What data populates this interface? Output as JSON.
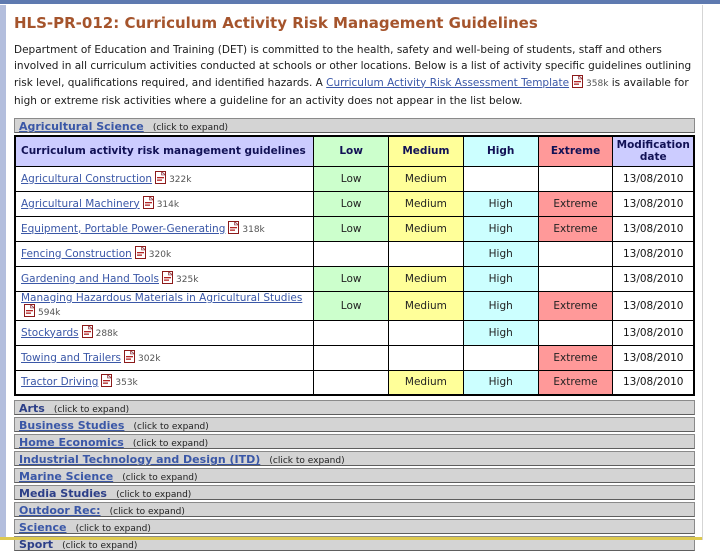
{
  "page": {
    "title": "HLS-PR-012: Curriculum Activity Risk Management Guidelines"
  },
  "intro": {
    "text_before_link": "Department of Education and Training (DET) is committed to the health, safety and well-being of students, staff and others involved in all curriculum activities conducted at schools or other locations. Below is a list of activity specific guidelines outlining risk level, qualifications required, and identified hazards. A ",
    "link_text": "Curriculum Activity Risk Assessment Template",
    "link_size": "358k",
    "text_after_link": " is available for high or extreme risk activities where a guideline for an activity does not appear in the list below."
  },
  "expanded_section": {
    "label": "Agricultural Science",
    "hint": "(click to expand)"
  },
  "table": {
    "headers": [
      "Curriculum activity risk management guidelines",
      "Low",
      "Medium",
      "High",
      "Extreme",
      "Modification date"
    ],
    "rows": [
      {
        "activity": "Agricultural Construction",
        "size": "322k",
        "low": "Low",
        "medium": "Medium",
        "high": "",
        "extreme": "",
        "date": "13/08/2010"
      },
      {
        "activity": "Agricultural Machinery",
        "size": "314k",
        "low": "Low",
        "medium": "Medium",
        "high": "High",
        "extreme": "Extreme",
        "date": "13/08/2010"
      },
      {
        "activity": "Equipment, Portable Power-Generating",
        "size": "318k",
        "low": "Low",
        "medium": "Medium",
        "high": "High",
        "extreme": "Extreme",
        "date": "13/08/2010"
      },
      {
        "activity": "Fencing Construction",
        "size": "320k",
        "low": "",
        "medium": "",
        "high": "High",
        "extreme": "",
        "date": "13/08/2010"
      },
      {
        "activity": "Gardening and Hand Tools",
        "size": "325k",
        "low": "Low",
        "medium": "Medium",
        "high": "High",
        "extreme": "",
        "date": "13/08/2010"
      },
      {
        "activity": "Managing Hazardous Materials in Agricultural Studies",
        "size": "594k",
        "low": "Low",
        "medium": "Medium",
        "high": "High",
        "extreme": "Extreme",
        "date": "13/08/2010"
      },
      {
        "activity": "Stockyards",
        "size": "288k",
        "low": "",
        "medium": "",
        "high": "High",
        "extreme": "",
        "date": "13/08/2010"
      },
      {
        "activity": "Towing and Trailers",
        "size": "302k",
        "low": "",
        "medium": "",
        "high": "",
        "extreme": "Extreme",
        "date": "13/08/2010"
      },
      {
        "activity": "Tractor Driving",
        "size": "353k",
        "low": "",
        "medium": "Medium",
        "high": "High",
        "extreme": "Extreme",
        "date": "13/08/2010"
      }
    ]
  },
  "collapsed_sections": [
    {
      "label": "Arts",
      "hint": "(click to expand)",
      "underlined": false
    },
    {
      "label": "Business Studies",
      "hint": "(click to expand)",
      "underlined": true
    },
    {
      "label": "Home Economics",
      "hint": "(click to expand)",
      "underlined": true
    },
    {
      "label": "Industrial Technology and Design (ITD)",
      "hint": "(click to expand)",
      "underlined": true
    },
    {
      "label": "Marine Science",
      "hint": "(click to expand)",
      "underlined": true
    },
    {
      "label": "Media Studies",
      "hint": "(click to expand)",
      "underlined": false
    },
    {
      "label": "Outdoor Rec:",
      "hint": "(click to expand)",
      "underlined": true
    },
    {
      "label": "Science",
      "hint": "(click to expand)",
      "underlined": true
    },
    {
      "label": "Sport",
      "hint": "(click to expand)",
      "underlined": false
    }
  ],
  "colors": {
    "title_accent": "#a5542c",
    "link_blue": "#3a57a7",
    "header_purple": "#ccccff",
    "low_green": "#ccffcc",
    "medium_yellow": "#ffff99",
    "high_cyan": "#ccffff",
    "extreme_red": "#ff9999",
    "bar_gray": "#d4d4d4",
    "topbar_blue": "#5e7ab0",
    "leftedge_blue": "#b3bedd",
    "bottom_gold": "#ddc94f"
  }
}
